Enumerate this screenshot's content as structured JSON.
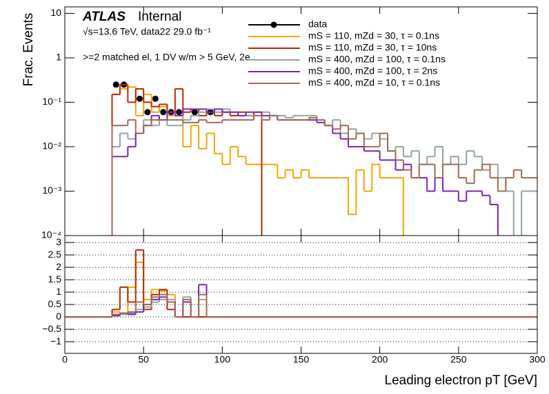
{
  "chart_data": [
    {
      "type": "histogram",
      "log_y": true,
      "y_label": "Frac. Events",
      "annotations": [
        "ATLAS",
        "Internal",
        "√s=13.6 TeV, data22 29.0 fb⁻¹",
        ">=2 matched el, 1 DV w/m > 5 GeV, 2e"
      ],
      "xlim": [
        0,
        300
      ],
      "xticks": [
        0,
        50,
        100,
        150,
        200,
        250,
        300
      ],
      "ylim": [
        0.0001,
        14
      ],
      "yticks": [
        {
          "value": 0.0001,
          "label": "10⁻⁴"
        },
        {
          "value": 0.001,
          "label": "10⁻³"
        },
        {
          "value": 0.01,
          "label": "10⁻²"
        },
        {
          "value": 0.1,
          "label": "10⁻¹"
        },
        1,
        10
      ],
      "bins": [
        0,
        5,
        10,
        15,
        20,
        25,
        30,
        35,
        40,
        45,
        50,
        55,
        60,
        65,
        70,
        75,
        80,
        85,
        90,
        95,
        100,
        105,
        110,
        115,
        120,
        125,
        130,
        135,
        140,
        145,
        150,
        155,
        160,
        165,
        170,
        175,
        180,
        185,
        190,
        195,
        200,
        205,
        210,
        215,
        220,
        225,
        230,
        235,
        240,
        245,
        250,
        255,
        260,
        265,
        270,
        275,
        280,
        285,
        290,
        295,
        300
      ],
      "series": [
        {
          "name": "data",
          "color": "#000000",
          "x": [
            32.5,
            37.5,
            47.5,
            52.5,
            57.5,
            62.5,
            67.5,
            72.5,
            82.5,
            92.5
          ],
          "values": [
            0.25,
            0.25,
            0.12,
            0.06,
            0.12,
            0.06,
            0.06,
            0.06,
            0.06,
            0.06
          ]
        },
        {
          "name": "mS = 110, mZd = 30, τ = 0.1ns",
          "color": "#f5a300",
          "values": [
            null,
            null,
            null,
            null,
            null,
            null,
            0.15,
            0.2,
            0.22,
            0.05,
            0.15,
            0.06,
            0.08,
            0.05,
            0.05,
            0.01,
            0.03,
            0.009,
            0.02,
            0.007,
            0.004,
            0.01,
            0.006,
            0.004,
            0.004,
            0.004,
            0.004,
            0.002,
            0.003,
            0.002,
            0.003,
            0.002,
            0.002,
            0.002,
            0.002,
            0.002,
            0.0003,
            0.003,
            0.001,
            0.004,
            0.002,
            0.002,
            0.002,
            null,
            null,
            null,
            null,
            null,
            null,
            null,
            null,
            null,
            null,
            null,
            null,
            null,
            null,
            null,
            null,
            null
          ]
        },
        {
          "name": "mS = 110, mZd = 30, τ = 10ns",
          "color": "#b52a00",
          "values": [
            null,
            null,
            null,
            null,
            null,
            null,
            0.15,
            0.25,
            0.1,
            0.2,
            0.1,
            0.08,
            0.09,
            0.06,
            0.2,
            0.06,
            0.07,
            0.05,
            0.06,
            0.05,
            0.06,
            0.05,
            0.06,
            0.05,
            0.06,
            null,
            null,
            null,
            null,
            null,
            null,
            null,
            null,
            null,
            null,
            null,
            null,
            null,
            null,
            null,
            null,
            null,
            null,
            null,
            null,
            null,
            null,
            null,
            null,
            null,
            null,
            null,
            null,
            null,
            null,
            null,
            null,
            null,
            null,
            null
          ]
        },
        {
          "name": "mS = 400, mZd = 100, τ = 0.1ns",
          "color": "#90a4a0",
          "values": [
            null,
            null,
            null,
            null,
            null,
            null,
            0.01,
            0.02,
            0.015,
            0.02,
            0.04,
            0.03,
            0.04,
            0.03,
            0.03,
            0.04,
            0.05,
            0.06,
            0.07,
            0.06,
            0.07,
            0.06,
            0.05,
            0.05,
            0.05,
            0.06,
            0.05,
            0.05,
            0.045,
            0.05,
            0.05,
            0.05,
            0.04,
            0.03,
            0.04,
            0.02,
            0.025,
            0.02,
            0.015,
            0.02,
            0.015,
            0.008,
            0.01,
            0.006,
            0.008,
            0.004,
            0.006,
            0.01,
            0.004,
            0.006,
            0.004,
            0.008,
            0.006,
            0.003,
            0.004,
            0.002,
            0.001,
            null,
            0.001,
            0.001
          ]
        },
        {
          "name": "mS = 400, mZd = 100, τ = 2ns",
          "color": "#7b22b8",
          "values": [
            null,
            null,
            null,
            null,
            null,
            null,
            0.006,
            0.006,
            0.01,
            0.02,
            0.03,
            0.05,
            0.04,
            0.06,
            0.05,
            0.07,
            0.07,
            0.07,
            0.06,
            0.07,
            0.06,
            0.06,
            0.05,
            0.06,
            0.06,
            0.05,
            0.05,
            0.04,
            0.04,
            0.04,
            0.04,
            0.04,
            0.035,
            0.03,
            0.02,
            0.015,
            0.01,
            0.01,
            0.008,
            0.008,
            0.005,
            0.005,
            0.003,
            0.004,
            0.002,
            0.002,
            0.001,
            0.002,
            0.001,
            0.001,
            0.0006,
            0.001,
            0.001,
            0.0008,
            0.0005,
            null,
            null,
            null,
            null,
            null
          ]
        },
        {
          "name": "mS = 400, mZd = 10, τ = 0.1ns",
          "color": "#a3694f",
          "values": [
            null,
            null,
            null,
            null,
            null,
            null,
            0.03,
            0.03,
            0.04,
            0.02,
            0.03,
            0.04,
            0.04,
            0.04,
            0.04,
            0.035,
            0.035,
            0.04,
            0.035,
            0.035,
            0.04,
            0.04,
            0.04,
            0.04,
            0.05,
            0.04,
            0.05,
            0.04,
            0.04,
            0.04,
            0.04,
            0.045,
            0.04,
            0.03,
            0.025,
            0.03,
            0.015,
            0.02,
            0.01,
            0.01,
            0.02,
            0.008,
            0.005,
            0.003,
            0.002,
            0.004,
            0.004,
            0.002,
            0.004,
            0.004,
            0.002,
            0.0015,
            0.003,
            0.004,
            0.002,
            0.001,
            0.002,
            0.003,
            0.002,
            0.002
          ]
        }
      ]
    },
    {
      "type": "histogram",
      "x_label": "Leading electron pT [GeV]",
      "xlim": [
        0,
        300
      ],
      "xticks": [
        0,
        50,
        100,
        150,
        200,
        250,
        300
      ],
      "ylim": [
        -1.47,
        3.28
      ],
      "yticks": [
        {
          "value": -1,
          "label": "−1"
        },
        {
          "value": -0.5,
          "label": "−0.5"
        },
        0,
        0.5,
        1,
        1.5,
        2,
        2.5,
        3
      ],
      "grid": true,
      "bins": [
        0,
        30,
        35,
        40,
        45,
        50,
        55,
        60,
        65,
        70,
        75,
        80,
        85,
        90,
        95,
        100,
        300
      ],
      "series": [
        {
          "color": "#f5a300",
          "values": [
            0,
            0.2,
            0.15,
            1.2,
            2.2,
            0.7,
            1.1,
            1.05,
            0.9,
            0,
            0,
            0,
            0,
            0,
            0,
            0
          ]
        },
        {
          "color": "#b52a00",
          "values": [
            0,
            0.3,
            1.2,
            0.6,
            2.7,
            0.3,
            0.9,
            1.1,
            0.3,
            0,
            0,
            0,
            0,
            0,
            0,
            0
          ]
        },
        {
          "color": "#90a4a0",
          "values": [
            0,
            0.05,
            0.1,
            0.15,
            0.3,
            0.4,
            0.6,
            0.7,
            0.7,
            0,
            0.8,
            0,
            0.7,
            0,
            0,
            0
          ]
        },
        {
          "color": "#7b22b8",
          "values": [
            0,
            0.05,
            0.15,
            0.1,
            0.2,
            0.5,
            0.7,
            0.8,
            0.6,
            0,
            0.6,
            0,
            1.3,
            0,
            0,
            0
          ]
        },
        {
          "color": "#a3694f",
          "values": [
            0,
            0.1,
            0.15,
            0.2,
            0.6,
            0.5,
            0.8,
            0.9,
            0.6,
            0,
            0.7,
            0,
            0.9,
            0,
            0,
            0
          ]
        }
      ]
    }
  ]
}
